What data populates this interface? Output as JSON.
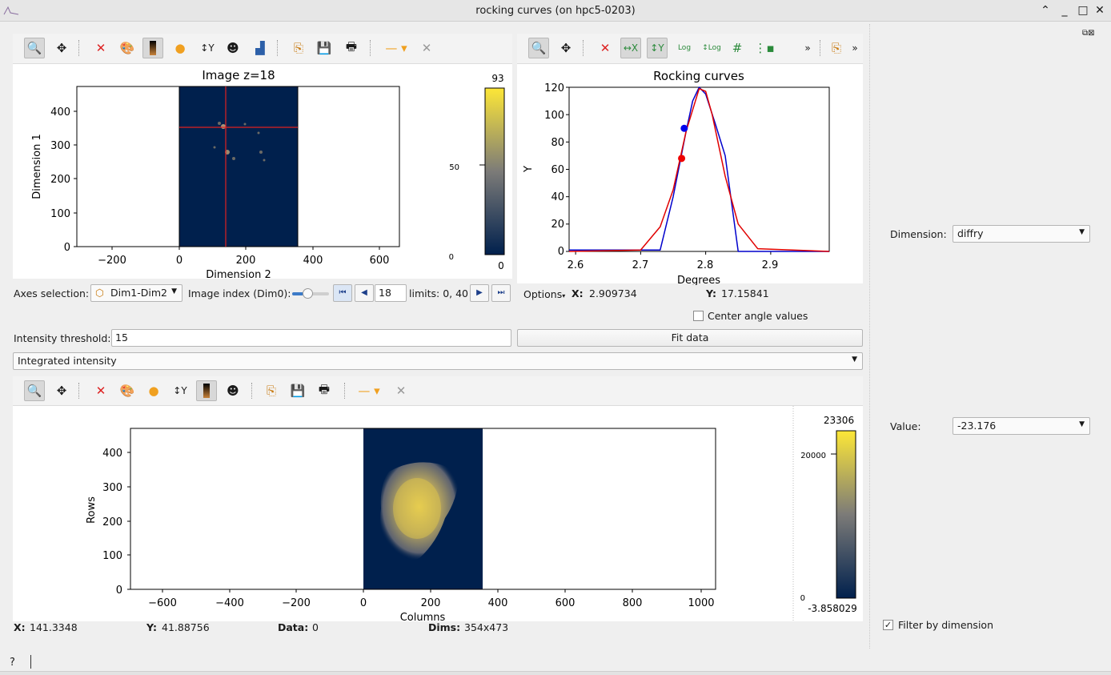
{
  "window": {
    "title": "rocking curves (on hpc5-0203)"
  },
  "top_image": {
    "title": "Image z=18",
    "xlabel": "Dimension 2",
    "ylabel": "Dimension 1",
    "xticks": [
      "−200",
      "0",
      "200",
      "400",
      "600"
    ],
    "yticks": [
      "0",
      "100",
      "200",
      "300",
      "400"
    ],
    "colorbar_max": "93",
    "colorbar_mid": "50",
    "colorbar_min_tick": "0",
    "colorbar_min": "0"
  },
  "axes_selection": {
    "label": "Axes selection:",
    "value": "Dim1-Dim2"
  },
  "image_index": {
    "label": "Image index (Dim0):",
    "value": "18",
    "limits": "limits: 0, 40"
  },
  "rocking": {
    "title": "Rocking curves",
    "xlabel": "Degrees",
    "ylabel": "Y",
    "xticks": [
      "2.6",
      "2.7",
      "2.8",
      "2.9"
    ],
    "yticks": [
      "0",
      "20",
      "40",
      "60",
      "80",
      "100",
      "120"
    ],
    "options_label": "Options",
    "x_label": "X:",
    "x_value": "2.909734",
    "y_label": "Y:",
    "y_value": "17.15841"
  },
  "chart_data": {
    "type": "line",
    "title": "Rocking curves",
    "xlabel": "Degrees",
    "ylabel": "Y",
    "xlim": [
      2.59,
      2.99
    ],
    "ylim": [
      0,
      120
    ],
    "series": [
      {
        "x": [
          2.59,
          2.73,
          2.75,
          2.77,
          2.78,
          2.79,
          2.8,
          2.815,
          2.83,
          2.85,
          2.99
        ],
        "y": [
          1,
          1,
          40,
          88,
          110,
          120,
          115,
          93,
          70,
          0,
          0
        ],
        "color": "#0000cc"
      },
      {
        "x": [
          2.59,
          2.7,
          2.73,
          2.75,
          2.77,
          2.79,
          2.8,
          2.81,
          2.83,
          2.85,
          2.88,
          2.99
        ],
        "y": [
          0,
          1,
          18,
          45,
          88,
          119,
          117,
          100,
          55,
          20,
          2,
          0
        ],
        "color": "#e00000"
      }
    ],
    "points": [
      {
        "x": 2.767,
        "y": 90,
        "color": "#0000ee"
      },
      {
        "x": 2.763,
        "y": 68,
        "color": "#ee0000"
      }
    ]
  },
  "center_angle": {
    "label": "Center angle values",
    "checked": false
  },
  "threshold": {
    "label": "Intensity threshold:",
    "value": "15"
  },
  "fit_button": "Fit data",
  "mode_combo": "Integrated intensity",
  "bottom_image": {
    "xlabel": "Columns",
    "ylabel": "Rows",
    "xticks": [
      "−600",
      "−400",
      "−200",
      "0",
      "200",
      "400",
      "600",
      "800",
      "1000"
    ],
    "yticks": [
      "0",
      "100",
      "200",
      "300",
      "400"
    ],
    "colorbar_max": "23306",
    "colorbar_mid": "20000",
    "colorbar_min_tick": "0",
    "colorbar_min": "-3.858029"
  },
  "status": {
    "x_label": "X:",
    "x_value": "141.3348",
    "y_label": "Y:",
    "y_value": "41.88756",
    "data_label": "Data:",
    "data_value": "0",
    "dims_label": "Dims:",
    "dims_value": "354x473"
  },
  "side": {
    "dimension_label": "Dimension:",
    "dimension_value": "diffry",
    "value_label": "Value:",
    "value_value": "-23.176",
    "filter_label": "Filter by dimension",
    "filter_checked": true
  },
  "help": "?"
}
